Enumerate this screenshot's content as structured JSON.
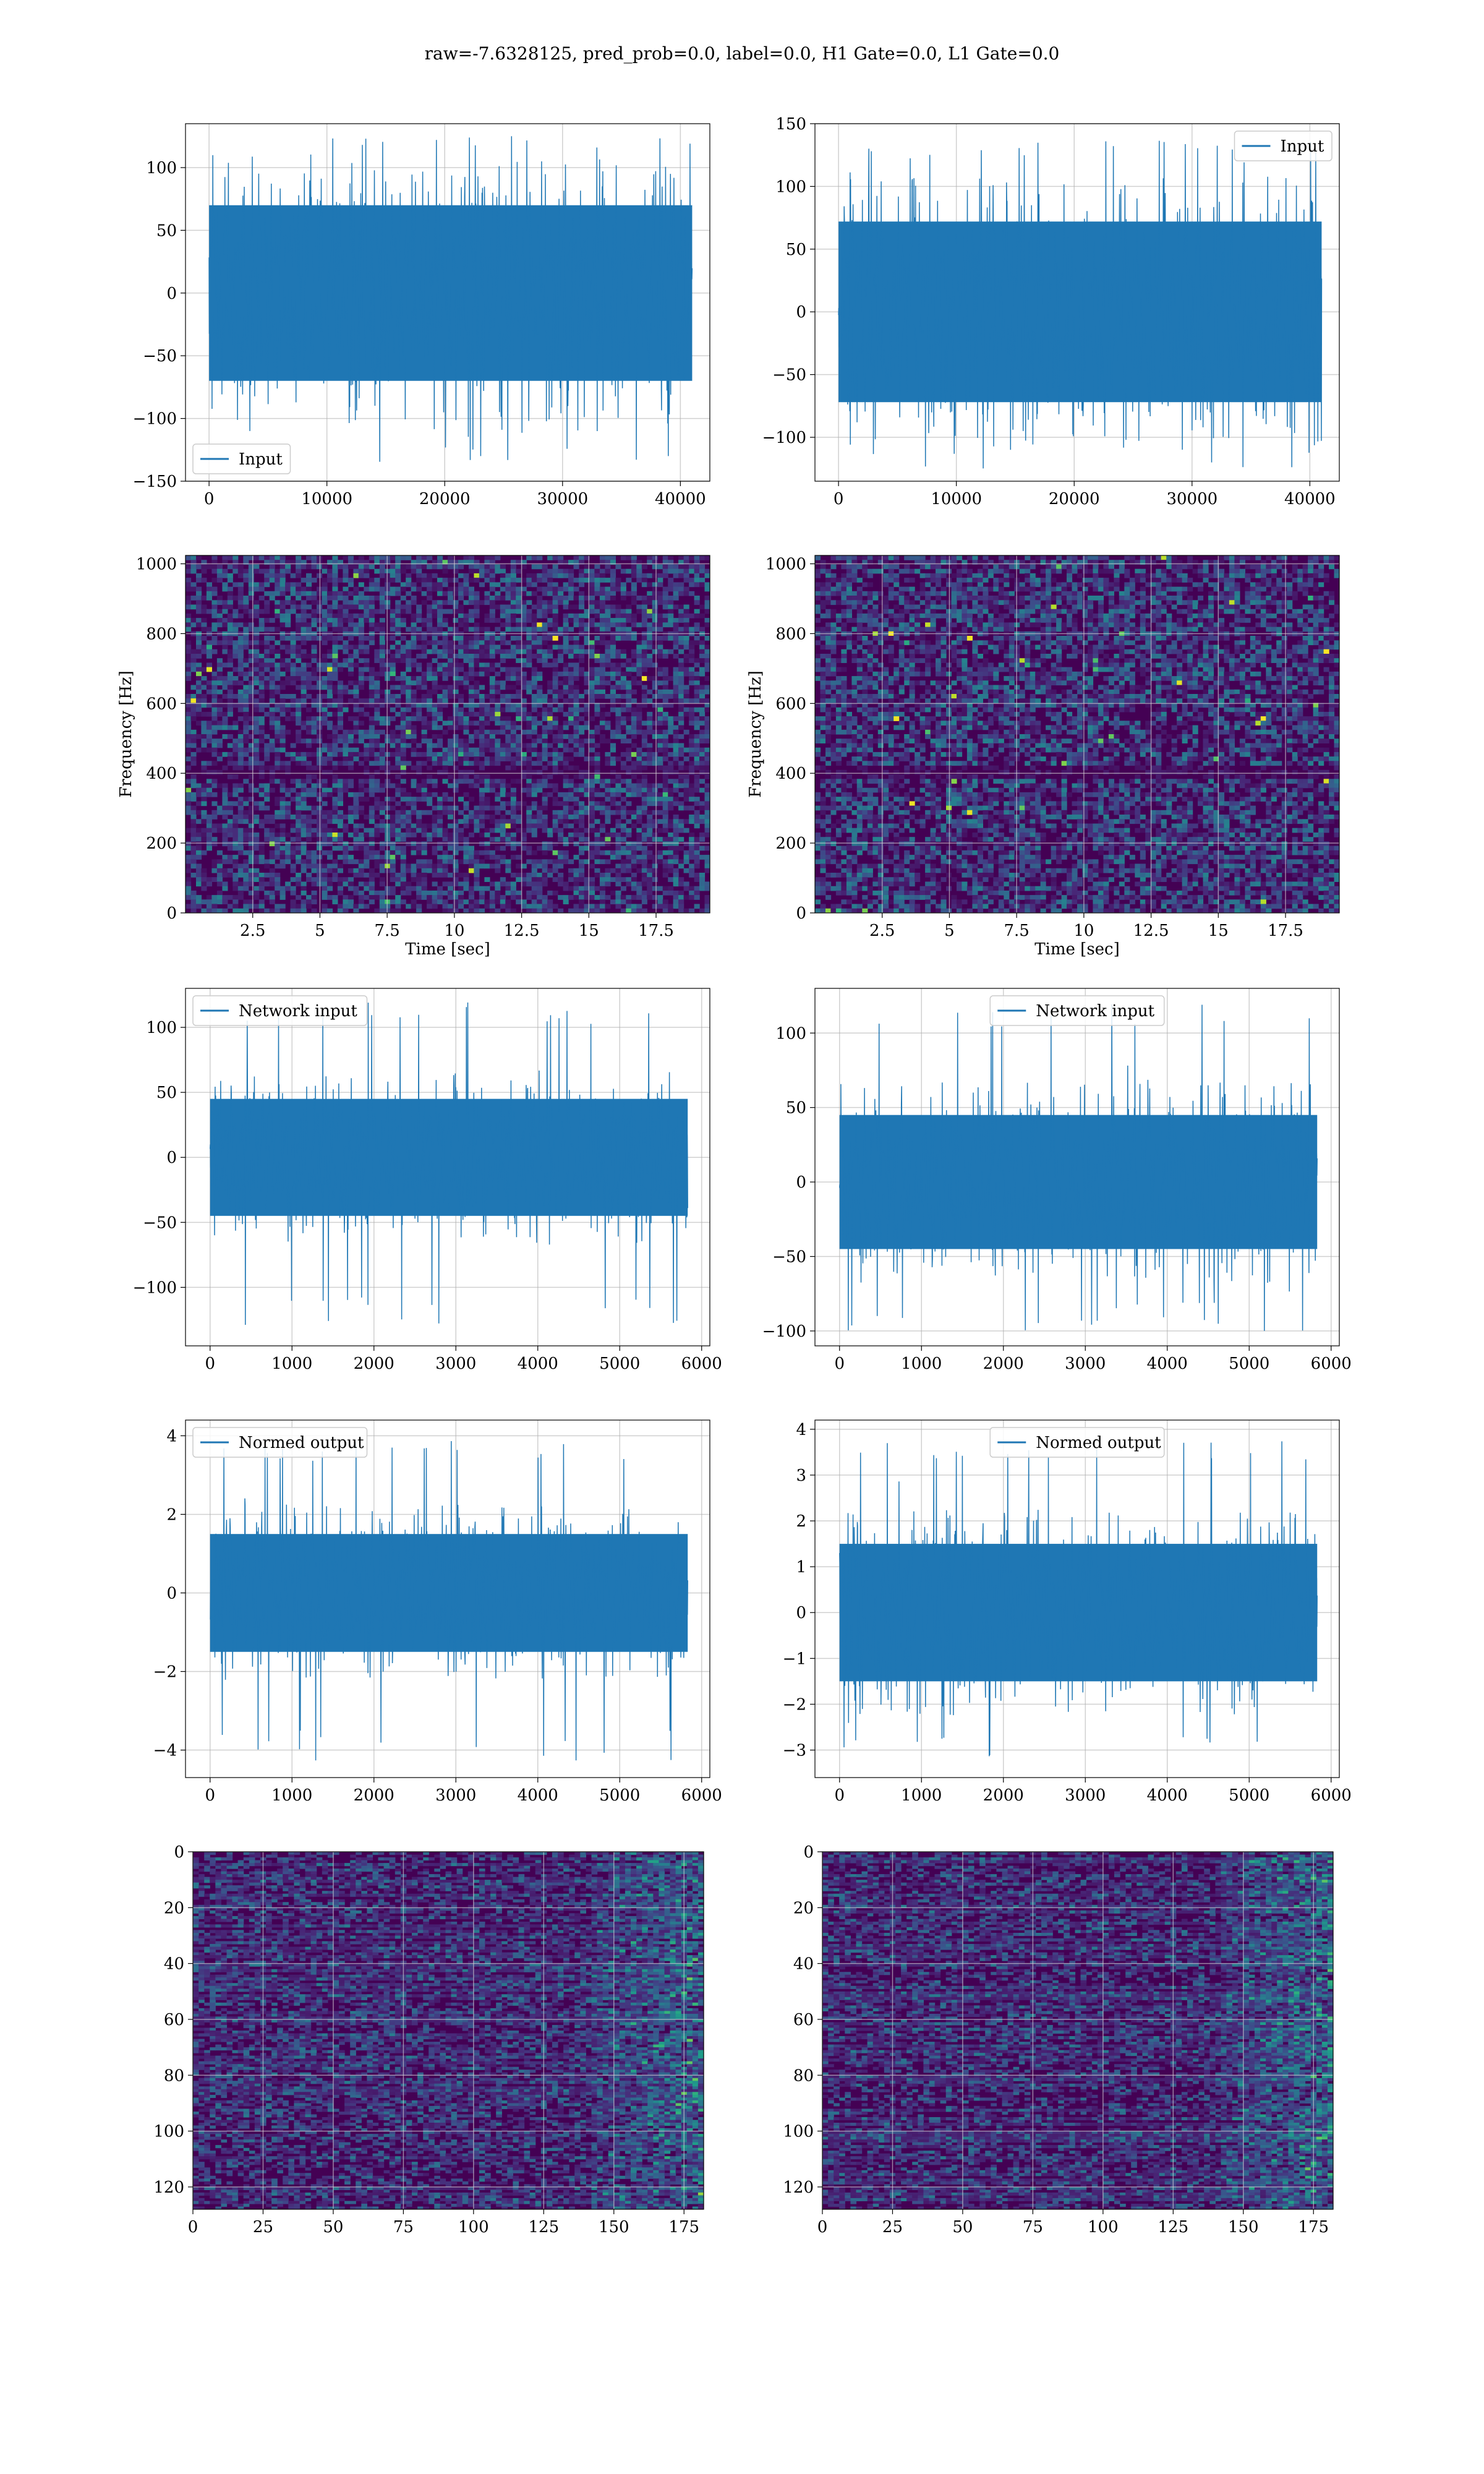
{
  "figure_title": "raw=-7.6328125, pred_prob=0.0, label=0.0, H1 Gate=0.0, L1 Gate=0.0",
  "colors": {
    "line": "#1f77b4",
    "grid": "#b0b0b0",
    "frame": "#000000",
    "viridis_dark": "#440154"
  },
  "chart_data": [
    {
      "id": "left-input",
      "type": "line",
      "xlim": [
        -2000,
        42500
      ],
      "ylim": [
        -150,
        135
      ],
      "xticks": [
        0,
        10000,
        20000,
        30000,
        40000
      ],
      "yticks": [
        -150,
        -100,
        -50,
        0,
        50,
        100
      ],
      "x_range": [
        0,
        41000
      ],
      "series": [
        {
          "name": "Input"
        }
      ],
      "legend_loc": "lower-left",
      "grid": true,
      "envelope": {
        "core": 70,
        "peak_max": 125,
        "peak_min": -135
      }
    },
    {
      "id": "right-input",
      "type": "line",
      "xlim": [
        -2000,
        42500
      ],
      "ylim": [
        -135,
        150
      ],
      "xticks": [
        0,
        10000,
        20000,
        30000,
        40000
      ],
      "yticks": [
        -100,
        -50,
        0,
        50,
        100,
        150
      ],
      "x_range": [
        0,
        41000
      ],
      "series": [
        {
          "name": "Input"
        }
      ],
      "legend_loc": "upper-right",
      "grid": true,
      "envelope": {
        "core": 72,
        "peak_max": 140,
        "peak_min": -125
      }
    },
    {
      "id": "left-spectrogram",
      "type": "heatmap",
      "xlim": [
        0,
        19.5
      ],
      "ylim": [
        0,
        1024
      ],
      "xticks": [
        2.5,
        5.0,
        7.5,
        10.0,
        12.5,
        15.0,
        17.5
      ],
      "yticks": [
        0,
        200,
        400,
        600,
        800,
        1000
      ],
      "xlabel": "Time [sec]",
      "ylabel": "Frequency [Hz]",
      "grid": true
    },
    {
      "id": "right-spectrogram",
      "type": "heatmap",
      "xlim": [
        0,
        19.5
      ],
      "ylim": [
        0,
        1024
      ],
      "xticks": [
        2.5,
        5.0,
        7.5,
        10.0,
        12.5,
        15.0,
        17.5
      ],
      "yticks": [
        0,
        200,
        400,
        600,
        800,
        1000
      ],
      "xlabel": "Time [sec]",
      "ylabel": "Frequency [Hz]",
      "grid": true
    },
    {
      "id": "left-network-input",
      "type": "line",
      "xlim": [
        -300,
        6100
      ],
      "ylim": [
        -145,
        130
      ],
      "xticks": [
        0,
        1000,
        2000,
        3000,
        4000,
        5000,
        6000
      ],
      "yticks": [
        -100,
        -50,
        0,
        50,
        100
      ],
      "x_range": [
        0,
        5830
      ],
      "series": [
        {
          "name": "Network input"
        }
      ],
      "legend_loc": "upper-left",
      "grid": true,
      "envelope": {
        "core": 45,
        "peak_max": 120,
        "peak_min": -130
      }
    },
    {
      "id": "right-network-input",
      "type": "line",
      "xlim": [
        -300,
        6100
      ],
      "ylim": [
        -110,
        130
      ],
      "xticks": [
        0,
        1000,
        2000,
        3000,
        4000,
        5000,
        6000
      ],
      "yticks": [
        -100,
        -50,
        0,
        50,
        100
      ],
      "x_range": [
        0,
        5830
      ],
      "series": [
        {
          "name": "Network input"
        }
      ],
      "legend_loc": "upper-center",
      "grid": true,
      "envelope": {
        "core": 45,
        "peak_max": 120,
        "peak_min": -100
      }
    },
    {
      "id": "left-normed-output",
      "type": "line",
      "xlim": [
        -300,
        6100
      ],
      "ylim": [
        -4.7,
        4.4
      ],
      "xticks": [
        0,
        1000,
        2000,
        3000,
        4000,
        5000,
        6000
      ],
      "yticks": [
        -4,
        -2,
        0,
        2,
        4
      ],
      "x_range": [
        0,
        5830
      ],
      "series": [
        {
          "name": "Normed output"
        }
      ],
      "legend_loc": "upper-left",
      "grid": true,
      "envelope": {
        "core": 1.5,
        "peak_max": 3.9,
        "peak_min": -4.3
      }
    },
    {
      "id": "right-normed-output",
      "type": "line",
      "xlim": [
        -300,
        6100
      ],
      "ylim": [
        -3.6,
        4.2
      ],
      "xticks": [
        0,
        1000,
        2000,
        3000,
        4000,
        5000,
        6000
      ],
      "yticks": [
        -3,
        -2,
        -1,
        0,
        1,
        2,
        3,
        4
      ],
      "x_range": [
        0,
        5830
      ],
      "series": [
        {
          "name": "Normed output"
        }
      ],
      "legend_loc": "upper-center",
      "grid": true,
      "envelope": {
        "core": 1.5,
        "peak_max": 3.9,
        "peak_min": -3.2
      }
    },
    {
      "id": "left-feature-map",
      "type": "heatmap",
      "xlim": [
        0,
        182
      ],
      "ylim": [
        128,
        0
      ],
      "xticks": [
        0,
        25,
        50,
        75,
        100,
        125,
        150,
        175
      ],
      "yticks": [
        0,
        20,
        40,
        60,
        80,
        100,
        120
      ],
      "grid": true
    },
    {
      "id": "right-feature-map",
      "type": "heatmap",
      "xlim": [
        0,
        182
      ],
      "ylim": [
        128,
        0
      ],
      "xticks": [
        0,
        25,
        50,
        75,
        100,
        125,
        150,
        175
      ],
      "yticks": [
        0,
        20,
        40,
        60,
        80,
        100,
        120
      ],
      "grid": true
    }
  ]
}
